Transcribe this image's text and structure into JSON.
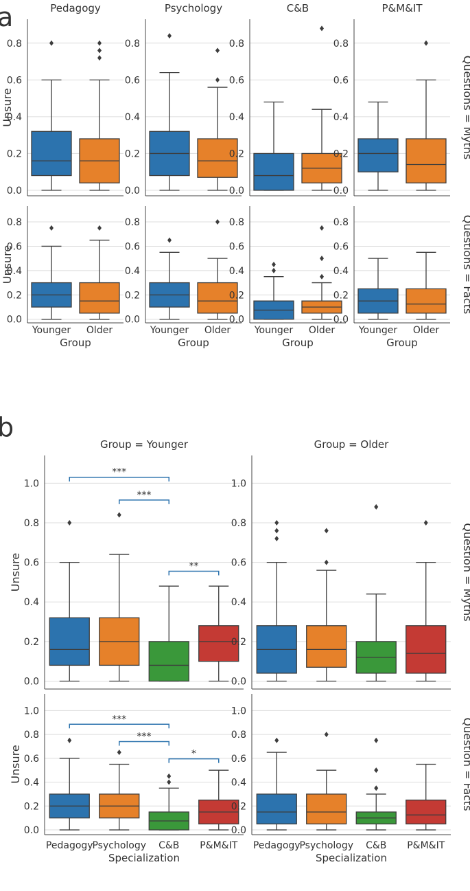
{
  "colors": {
    "blue": "#2C73AE",
    "orange": "#E6812A",
    "green": "#3A983A",
    "red": "#C43A34",
    "sig": "#2C73AE",
    "grid": "#dcdcdc",
    "axis": "#444444",
    "box_edge": "#3d3d3d"
  },
  "panel_labels": {
    "a": "a",
    "b": "b"
  },
  "chart_data": [
    {
      "id": "a",
      "type": "box",
      "title": "a",
      "ylabel": "Unsure",
      "xlabel": "Group",
      "ylim": [
        -0.03,
        0.93
      ],
      "yticks": [
        0.0,
        0.2,
        0.4,
        0.6,
        0.8
      ],
      "categories": [
        "Younger",
        "Older"
      ],
      "box_colors": [
        "blue",
        "orange"
      ],
      "col_titles": [
        "Pedagogy",
        "Psychology",
        "C&B",
        "P&M&IT"
      ],
      "row_titles": [
        "Questions = Myths",
        "Questions = Facts"
      ],
      "grid": true,
      "panels": [
        [
          [
            {
              "min": 0,
              "q1": 0.08,
              "median": 0.16,
              "q3": 0.32,
              "max": 0.6,
              "fliers": [
                0.8
              ]
            },
            {
              "min": 0,
              "q1": 0.04,
              "median": 0.16,
              "q3": 0.28,
              "max": 0.6,
              "fliers": [
                0.72,
                0.76,
                0.8
              ]
            }
          ],
          [
            {
              "min": 0,
              "q1": 0.08,
              "median": 0.2,
              "q3": 0.32,
              "max": 0.64,
              "fliers": [
                0.84
              ]
            },
            {
              "min": 0,
              "q1": 0.07,
              "median": 0.16,
              "q3": 0.28,
              "max": 0.56,
              "fliers": [
                0.6,
                0.76
              ]
            }
          ],
          [
            {
              "min": 0,
              "q1": 0.0,
              "median": 0.08,
              "q3": 0.2,
              "max": 0.48,
              "fliers": []
            },
            {
              "min": 0,
              "q1": 0.04,
              "median": 0.12,
              "q3": 0.2,
              "max": 0.44,
              "fliers": [
                0.88
              ]
            }
          ],
          [
            {
              "min": 0,
              "q1": 0.1,
              "median": 0.2,
              "q3": 0.28,
              "max": 0.48,
              "fliers": []
            },
            {
              "min": 0,
              "q1": 0.04,
              "median": 0.14,
              "q3": 0.28,
              "max": 0.6,
              "fliers": [
                0.8
              ]
            }
          ]
        ],
        [
          [
            {
              "min": 0,
              "q1": 0.1,
              "median": 0.2,
              "q3": 0.3,
              "max": 0.6,
              "fliers": [
                0.75
              ]
            },
            {
              "min": 0,
              "q1": 0.05,
              "median": 0.15,
              "q3": 0.3,
              "max": 0.65,
              "fliers": [
                0.75
              ]
            }
          ],
          [
            {
              "min": 0,
              "q1": 0.1,
              "median": 0.2,
              "q3": 0.3,
              "max": 0.55,
              "fliers": [
                0.65
              ]
            },
            {
              "min": 0,
              "q1": 0.05,
              "median": 0.15,
              "q3": 0.3,
              "max": 0.5,
              "fliers": [
                0.8
              ]
            }
          ],
          [
            {
              "min": 0,
              "q1": 0.0,
              "median": 0.075,
              "q3": 0.15,
              "max": 0.35,
              "fliers": [
                0.4,
                0.45
              ]
            },
            {
              "min": 0,
              "q1": 0.05,
              "median": 0.1,
              "q3": 0.15,
              "max": 0.3,
              "fliers": [
                0.35,
                0.5,
                0.75
              ]
            }
          ],
          [
            {
              "min": 0,
              "q1": 0.05,
              "median": 0.15,
              "q3": 0.25,
              "max": 0.5,
              "fliers": []
            },
            {
              "min": 0,
              "q1": 0.05,
              "median": 0.125,
              "q3": 0.25,
              "max": 0.55,
              "fliers": []
            }
          ]
        ]
      ]
    },
    {
      "id": "b",
      "type": "box",
      "title": "b",
      "ylabel": "Unsure",
      "xlabel": "Specialization",
      "ylim": [
        -0.04,
        1.14
      ],
      "yticks": [
        0.0,
        0.2,
        0.4,
        0.6,
        0.8,
        1.0
      ],
      "categories": [
        "Pedagogy",
        "Psychology",
        "C&B",
        "P&M&IT"
      ],
      "box_colors": [
        "blue",
        "orange",
        "green",
        "red"
      ],
      "col_titles": [
        "Group = Younger",
        "Group = Older"
      ],
      "row_titles": [
        "Question = Myths",
        "Question = Facts"
      ],
      "grid": true,
      "panels": [
        [
          [
            {
              "min": 0,
              "q1": 0.08,
              "median": 0.16,
              "q3": 0.32,
              "max": 0.6,
              "fliers": [
                0.8
              ]
            },
            {
              "min": 0,
              "q1": 0.08,
              "median": 0.2,
              "q3": 0.32,
              "max": 0.64,
              "fliers": [
                0.84
              ]
            },
            {
              "min": 0,
              "q1": 0.0,
              "median": 0.08,
              "q3": 0.2,
              "max": 0.48,
              "fliers": []
            },
            {
              "min": 0,
              "q1": 0.1,
              "median": 0.2,
              "q3": 0.28,
              "max": 0.48,
              "fliers": []
            }
          ],
          [
            {
              "min": 0,
              "q1": 0.04,
              "median": 0.16,
              "q3": 0.28,
              "max": 0.6,
              "fliers": [
                0.72,
                0.76,
                0.8
              ]
            },
            {
              "min": 0,
              "q1": 0.07,
              "median": 0.16,
              "q3": 0.28,
              "max": 0.56,
              "fliers": [
                0.6,
                0.76
              ]
            },
            {
              "min": 0,
              "q1": 0.04,
              "median": 0.12,
              "q3": 0.2,
              "max": 0.44,
              "fliers": [
                0.88
              ]
            },
            {
              "min": 0,
              "q1": 0.04,
              "median": 0.14,
              "q3": 0.28,
              "max": 0.6,
              "fliers": [
                0.8
              ]
            }
          ]
        ],
        [
          [
            {
              "min": 0,
              "q1": 0.1,
              "median": 0.2,
              "q3": 0.3,
              "max": 0.6,
              "fliers": [
                0.75
              ]
            },
            {
              "min": 0,
              "q1": 0.1,
              "median": 0.2,
              "q3": 0.3,
              "max": 0.55,
              "fliers": [
                0.65
              ]
            },
            {
              "min": 0,
              "q1": 0.0,
              "median": 0.075,
              "q3": 0.15,
              "max": 0.35,
              "fliers": [
                0.4,
                0.45
              ]
            },
            {
              "min": 0,
              "q1": 0.05,
              "median": 0.15,
              "q3": 0.25,
              "max": 0.5,
              "fliers": []
            }
          ],
          [
            {
              "min": 0,
              "q1": 0.05,
              "median": 0.15,
              "q3": 0.3,
              "max": 0.65,
              "fliers": [
                0.75
              ]
            },
            {
              "min": 0,
              "q1": 0.05,
              "median": 0.15,
              "q3": 0.3,
              "max": 0.5,
              "fliers": [
                0.8
              ]
            },
            {
              "min": 0,
              "q1": 0.05,
              "median": 0.1,
              "q3": 0.15,
              "max": 0.3,
              "fliers": [
                0.35,
                0.5,
                0.75
              ]
            },
            {
              "min": 0,
              "q1": 0.05,
              "median": 0.125,
              "q3": 0.25,
              "max": 0.55,
              "fliers": []
            }
          ]
        ]
      ],
      "annotations": [
        {
          "row": 0,
          "col": 0,
          "from": 0,
          "to": 2,
          "y": 1.03,
          "label": "***"
        },
        {
          "row": 0,
          "col": 0,
          "from": 1,
          "to": 2,
          "y": 0.915,
          "label": "***"
        },
        {
          "row": 0,
          "col": 0,
          "from": 2,
          "to": 3,
          "y": 0.555,
          "label": "**"
        },
        {
          "row": 1,
          "col": 0,
          "from": 0,
          "to": 2,
          "y": 0.885,
          "label": "***"
        },
        {
          "row": 1,
          "col": 0,
          "from": 1,
          "to": 2,
          "y": 0.74,
          "label": "***"
        },
        {
          "row": 1,
          "col": 0,
          "from": 2,
          "to": 3,
          "y": 0.595,
          "label": "*"
        }
      ]
    }
  ]
}
